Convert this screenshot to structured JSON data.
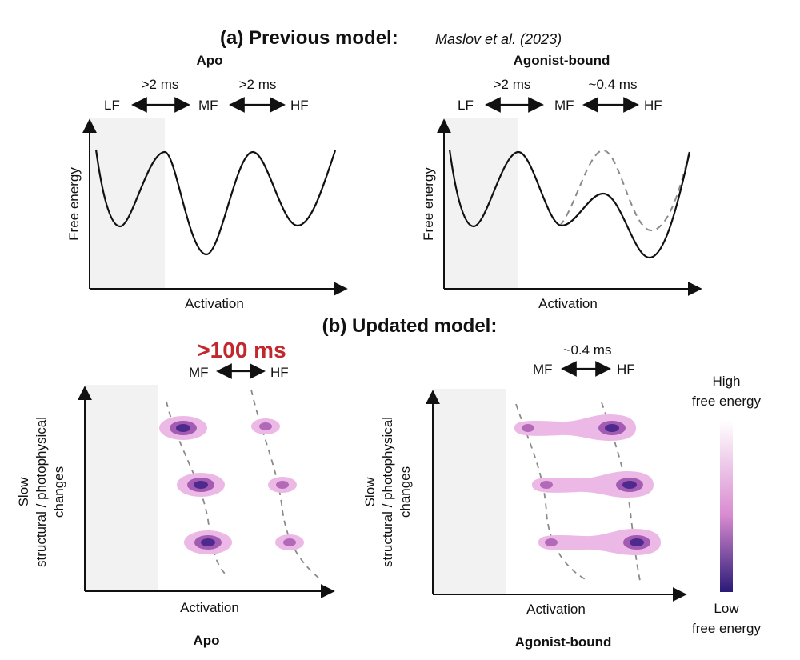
{
  "panel_a": {
    "title_prefix": "(a) Previous model:",
    "citation": "Maslov et al. (2023)",
    "left": {
      "title": "Apo",
      "states": [
        "LF",
        "MF",
        "HF"
      ],
      "transitions": [
        ">2 ms",
        ">2 ms"
      ],
      "ylabel": "Free energy",
      "xlabel": "Activation"
    },
    "right": {
      "title": "Agonist-bound",
      "states": [
        "LF",
        "MF",
        "HF"
      ],
      "transitions": [
        ">2 ms",
        "~0.4 ms"
      ],
      "ylabel": "Free energy",
      "xlabel": "Activation"
    }
  },
  "panel_b": {
    "title": "(b) Updated model:",
    "left": {
      "highlight": ">100 ms",
      "highlight_color": "#c1272d",
      "states": [
        "MF",
        "HF"
      ],
      "ylabel_line1": "Slow",
      "ylabel_line2": "structural / photophysical",
      "ylabel_line3": "changes",
      "xlabel": "Activation",
      "caption": "Apo"
    },
    "right": {
      "transition": "~0.4 ms",
      "states": [
        "MF",
        "HF"
      ],
      "ylabel_line1": "Slow",
      "ylabel_line2": "structural / photophysical",
      "ylabel_line3": "changes",
      "xlabel": "Activation",
      "caption": "Agonist-bound"
    },
    "colorbar": {
      "top_line1": "High",
      "top_line2": "free energy",
      "bottom_line1": "Low",
      "bottom_line2": "free energy",
      "color_high": "#ffffff",
      "color_mid": "#d98bd0",
      "color_low": "#2a1a78"
    }
  }
}
